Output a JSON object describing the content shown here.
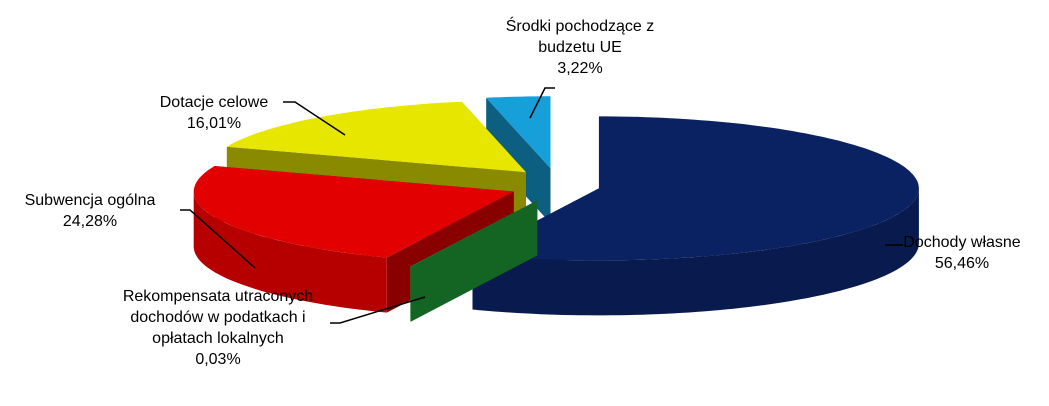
{
  "chart_data": {
    "type": "pie3d",
    "categories": [
      "Dochody własne",
      "Rekompensata utraconych dochodów w podatkach i opłatach lokalnych",
      "Subwencja ogólna",
      "Dotacje celowe",
      "Środki pochodzące z budzetu UE"
    ],
    "values": [
      56.46,
      0.03,
      24.28,
      16.01,
      3.22
    ],
    "value_labels": [
      "56,46%",
      "0,03%",
      "24,28%",
      "16,01%",
      "3,22%"
    ],
    "colors": [
      "#0b2262",
      "#22a63a",
      "#e30000",
      "#e6e600",
      "#169fd9"
    ]
  }
}
